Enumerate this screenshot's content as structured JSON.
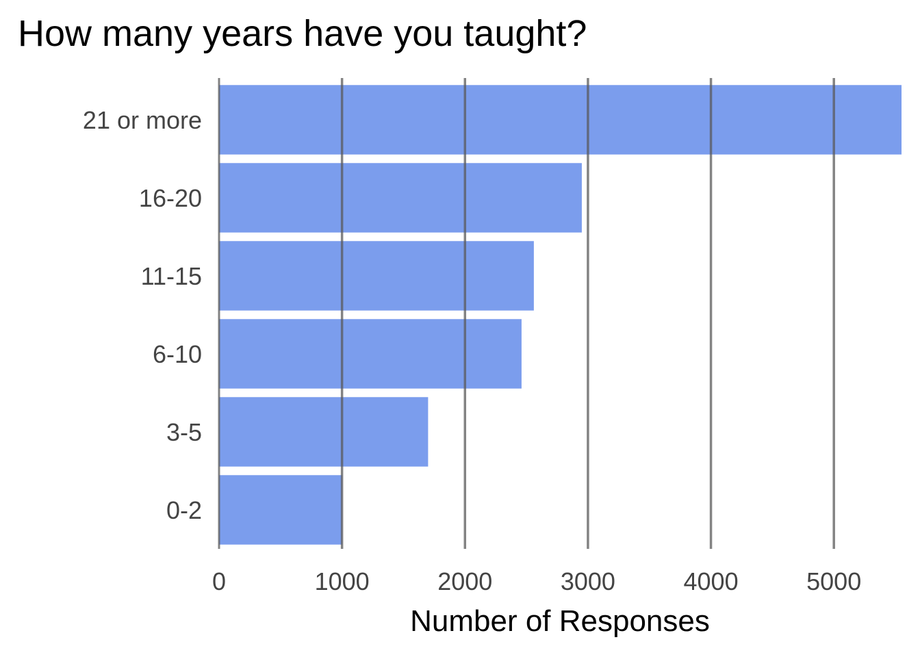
{
  "chart_data": {
    "type": "bar",
    "orientation": "horizontal",
    "title": "How many years have you taught?",
    "xlabel": "Number of Responses",
    "ylabel": "",
    "categories": [
      "21 or more",
      "16-20",
      "11-15",
      "6-10",
      "3-5",
      "0-2"
    ],
    "values": [
      5550,
      2950,
      2560,
      2460,
      1700,
      1000
    ],
    "xlim": [
      0,
      5550
    ],
    "x_ticks": [
      "0",
      "1000",
      "2000",
      "3000",
      "4000",
      "5000"
    ],
    "grid": "vertical",
    "bar_color": "#7b9ded",
    "grid_color": "#5a5a5a"
  }
}
